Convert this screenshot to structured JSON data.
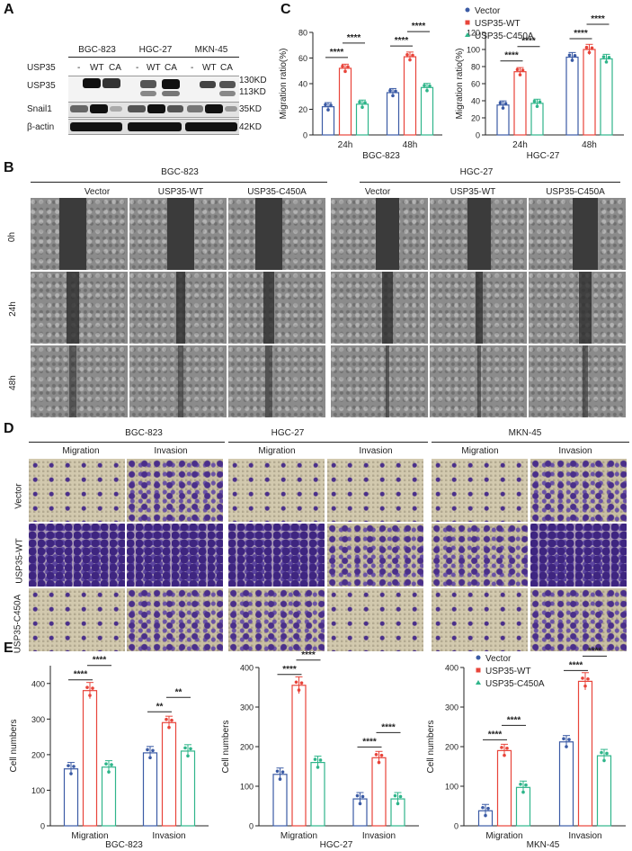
{
  "panel_letters": [
    "A",
    "B",
    "C",
    "D",
    "E"
  ],
  "panelA": {
    "cell_lines": [
      "BGC-823",
      "HGC-27",
      "MKN-45"
    ],
    "lane_labels": [
      "-",
      "WT",
      "CA"
    ],
    "row_labels": [
      "USP35",
      "USP35",
      "Snail1",
      "β-actin"
    ],
    "kd_labels": [
      "130KD",
      "113KD",
      "35KD",
      "42KD"
    ]
  },
  "panelB": {
    "cell_lines": [
      "BGC-823",
      "HGC-27"
    ],
    "conditions": [
      "Vector",
      "USP35-WT",
      "USP35-C450A"
    ],
    "times": [
      "0h",
      "24h",
      "48h"
    ]
  },
  "panelD": {
    "cell_lines": [
      "BGC-823",
      "HGC-27",
      "MKN-45"
    ],
    "assays": [
      "Migration",
      "Invasion"
    ],
    "rows": [
      "Vector",
      "USP35-WT",
      "USP35-C450A"
    ]
  },
  "legend": {
    "series": [
      "Vector",
      "USP35-WT",
      "USP35-C450A"
    ],
    "colors": [
      "#3b5ba5",
      "#e8443a",
      "#2fb58a"
    ]
  },
  "sig": "****",
  "sig2": "**",
  "chart_data": [
    {
      "type": "bar",
      "panel": "C",
      "group_label": "BGC-823",
      "ylabel": "Migration ratio(%)",
      "ylim": [
        0,
        80
      ],
      "yticks": [
        0,
        20,
        40,
        60,
        80
      ],
      "categories": [
        "24h",
        "48h"
      ],
      "series": [
        {
          "name": "Vector",
          "values": [
            22,
            33
          ]
        },
        {
          "name": "USP35-WT",
          "values": [
            52,
            61
          ]
        },
        {
          "name": "USP35-C450A",
          "values": [
            24,
            37
          ]
        }
      ]
    },
    {
      "type": "bar",
      "panel": "C",
      "group_label": "HGC-27",
      "ylabel": "Migration ratio(%)",
      "ylim": [
        0,
        120
      ],
      "yticks": [
        0,
        20,
        40,
        60,
        80,
        100,
        120
      ],
      "categories": [
        "24h",
        "48h"
      ],
      "series": [
        {
          "name": "Vector",
          "values": [
            35,
            91
          ]
        },
        {
          "name": "USP35-WT",
          "values": [
            74,
            100
          ]
        },
        {
          "name": "USP35-C450A",
          "values": [
            37,
            89
          ]
        }
      ]
    },
    {
      "type": "bar",
      "panel": "E",
      "group_label": "BGC-823",
      "ylabel": "Cell numbers",
      "ylim": [
        0,
        450
      ],
      "yticks": [
        0,
        100,
        200,
        300,
        400
      ],
      "categories": [
        "Migration",
        "Invasion"
      ],
      "series": [
        {
          "name": "Vector",
          "values": [
            160,
            205
          ]
        },
        {
          "name": "USP35-WT",
          "values": [
            380,
            290
          ]
        },
        {
          "name": "USP35-C450A",
          "values": [
            165,
            210
          ]
        }
      ]
    },
    {
      "type": "bar",
      "panel": "E",
      "group_label": "HGC-27",
      "ylabel": "Cell numbers",
      "ylim": [
        0,
        400
      ],
      "yticks": [
        0,
        100,
        200,
        300,
        400
      ],
      "categories": [
        "Migration",
        "Invasion"
      ],
      "series": [
        {
          "name": "Vector",
          "values": [
            130,
            68
          ]
        },
        {
          "name": "USP35-WT",
          "values": [
            355,
            172
          ]
        },
        {
          "name": "USP35-C450A",
          "values": [
            160,
            68
          ]
        }
      ]
    },
    {
      "type": "bar",
      "panel": "E",
      "group_label": "MKN-45",
      "ylabel": "Cell numbers",
      "ylim": [
        0,
        400
      ],
      "yticks": [
        0,
        100,
        200,
        300,
        400
      ],
      "categories": [
        "Migration",
        "Invasion"
      ],
      "series": [
        {
          "name": "Vector",
          "values": [
            38,
            212
          ]
        },
        {
          "name": "USP35-WT",
          "values": [
            190,
            365
          ]
        },
        {
          "name": "USP35-C450A",
          "values": [
            97,
            177
          ]
        }
      ]
    }
  ]
}
